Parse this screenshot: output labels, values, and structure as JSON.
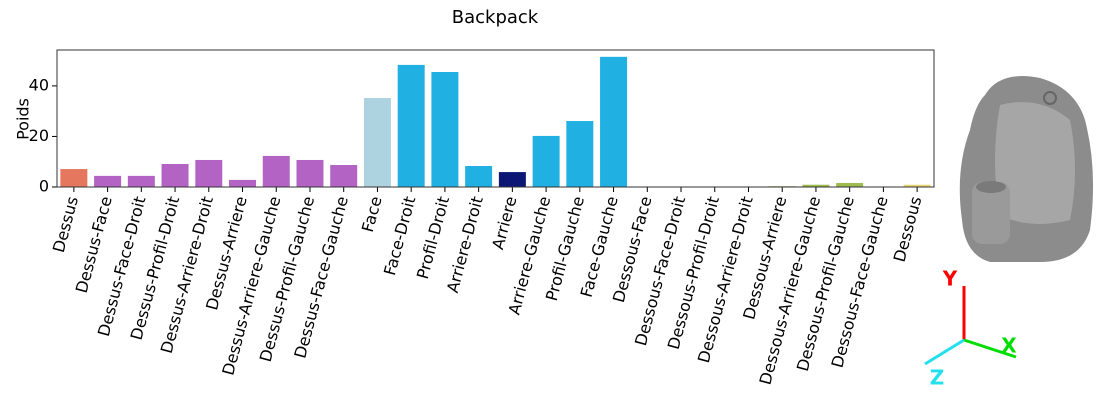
{
  "chart_data": {
    "type": "bar",
    "title": "Backpack",
    "ylabel": "Poids",
    "categories": [
      "Dessus",
      "Dessus-Face",
      "Dessus-Face-Droit",
      "Dessus-Profil-Droit",
      "Dessus-Arriere-Droit",
      "Dessus-Arriere",
      "Dessus-Arriere-Gauche",
      "Dessus-Profil-Gauche",
      "Dessus-Face-Gauche",
      "Face",
      "Face-Droit",
      "Profil-Droit",
      "Arriere-Droit",
      "Arriere",
      "Arriere-Gauche",
      "Profil-Gauche",
      "Face-Gauche",
      "Dessous-Face",
      "Dessous-Face-Droit",
      "Dessous-Profil-Droit",
      "Dessous-Arriere-Droit",
      "Dessous-Arriere",
      "Dessous-Arriere-Gauche",
      "Dessous-Profil-Gauche",
      "Dessous-Face-Gauche",
      "Dessous"
    ],
    "values": [
      7.1,
      4.4,
      4.4,
      9.1,
      10.7,
      2.8,
      12.3,
      10.7,
      8.7,
      35.2,
      48.3,
      45.5,
      8.3,
      5.9,
      20.2,
      26.1,
      51.5,
      0.1,
      0.1,
      0.1,
      0.1,
      0.3,
      0.9,
      1.6,
      0.2,
      0.9
    ],
    "colors": [
      "#e5775f",
      "#b263c4",
      "#b263c4",
      "#b263c4",
      "#b263c4",
      "#b263c4",
      "#b263c4",
      "#b263c4",
      "#b263c4",
      "#acd3df",
      "#20b0e2",
      "#20b0e2",
      "#20b0e2",
      "#0b1675",
      "#20b0e2",
      "#20b0e2",
      "#20b0e2",
      "#9dbb4f",
      "#9dbb4f",
      "#9dbb4f",
      "#9dbb4f",
      "#9dbb4f",
      "#9dbb4f",
      "#9dbb4f",
      "#9dbb4f",
      "#e8d678"
    ],
    "ylim": [
      0,
      54.2
    ],
    "yticks": [
      0,
      20,
      40
    ],
    "grid": false,
    "axis_labels": {
      "x": "X",
      "y": "Y",
      "z": "Z"
    }
  }
}
